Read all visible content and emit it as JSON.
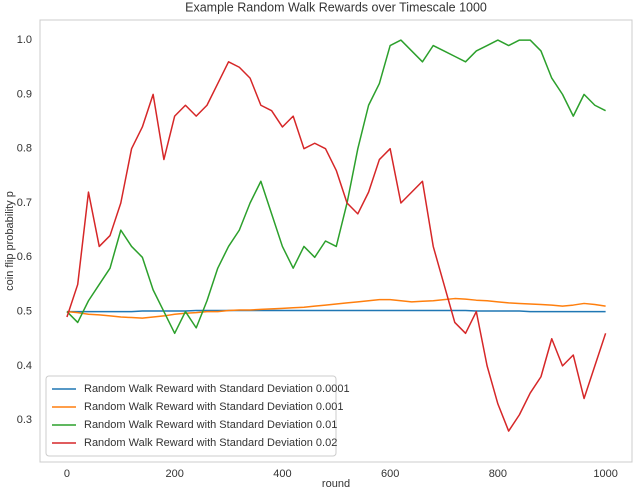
{
  "chart_data": {
    "type": "line",
    "title": "Example Random Walk Rewards over Timescale 1000",
    "x_label": "round",
    "y_label": "coin flip probability p",
    "x": [
      0,
      20,
      40,
      60,
      80,
      100,
      120,
      140,
      160,
      180,
      200,
      220,
      240,
      260,
      280,
      300,
      320,
      340,
      360,
      380,
      400,
      420,
      440,
      460,
      480,
      500,
      520,
      540,
      560,
      580,
      600,
      620,
      640,
      660,
      680,
      700,
      720,
      740,
      760,
      780,
      800,
      820,
      840,
      860,
      880,
      900,
      920,
      940,
      960,
      980,
      1000
    ],
    "series": [
      {
        "name": "Random Walk Reward with Standard Deviation 0.0001",
        "color": "#1f77b4",
        "values": [
          0.5,
          0.5,
          0.5,
          0.5,
          0.5,
          0.5,
          0.5,
          0.501,
          0.501,
          0.501,
          0.501,
          0.501,
          0.502,
          0.502,
          0.502,
          0.502,
          0.502,
          0.502,
          0.502,
          0.502,
          0.502,
          0.502,
          0.502,
          0.502,
          0.502,
          0.502,
          0.502,
          0.502,
          0.502,
          0.502,
          0.502,
          0.502,
          0.502,
          0.502,
          0.502,
          0.502,
          0.502,
          0.502,
          0.501,
          0.501,
          0.501,
          0.501,
          0.501,
          0.5,
          0.5,
          0.5,
          0.5,
          0.5,
          0.5,
          0.5,
          0.5
        ]
      },
      {
        "name": "Random Walk Reward with Standard Deviation 0.001",
        "color": "#ff7f0e",
        "values": [
          0.5,
          0.498,
          0.495,
          0.494,
          0.492,
          0.49,
          0.489,
          0.488,
          0.49,
          0.492,
          0.495,
          0.497,
          0.498,
          0.5,
          0.5,
          0.502,
          0.503,
          0.503,
          0.504,
          0.505,
          0.506,
          0.507,
          0.508,
          0.51,
          0.512,
          0.514,
          0.516,
          0.518,
          0.52,
          0.522,
          0.522,
          0.52,
          0.518,
          0.519,
          0.52,
          0.522,
          0.524,
          0.523,
          0.521,
          0.52,
          0.518,
          0.516,
          0.515,
          0.514,
          0.513,
          0.512,
          0.51,
          0.512,
          0.515,
          0.513,
          0.51
        ]
      },
      {
        "name": "Random Walk Reward with Standard Deviation 0.01",
        "color": "#2ca02c",
        "values": [
          0.5,
          0.48,
          0.52,
          0.55,
          0.58,
          0.65,
          0.62,
          0.6,
          0.54,
          0.5,
          0.46,
          0.5,
          0.47,
          0.52,
          0.58,
          0.62,
          0.65,
          0.7,
          0.74,
          0.68,
          0.62,
          0.58,
          0.62,
          0.6,
          0.63,
          0.62,
          0.7,
          0.8,
          0.88,
          0.92,
          0.99,
          1.0,
          0.98,
          0.96,
          0.99,
          0.98,
          0.97,
          0.96,
          0.98,
          0.99,
          1.0,
          0.99,
          1.0,
          1.0,
          0.98,
          0.93,
          0.9,
          0.86,
          0.9,
          0.88,
          0.87
        ]
      },
      {
        "name": "Random Walk Reward with Standard Deviation 0.02",
        "color": "#d62728",
        "values": [
          0.49,
          0.55,
          0.72,
          0.62,
          0.64,
          0.7,
          0.8,
          0.84,
          0.9,
          0.78,
          0.86,
          0.88,
          0.86,
          0.88,
          0.92,
          0.96,
          0.95,
          0.93,
          0.88,
          0.87,
          0.84,
          0.86,
          0.8,
          0.81,
          0.8,
          0.76,
          0.7,
          0.68,
          0.72,
          0.78,
          0.8,
          0.7,
          0.72,
          0.74,
          0.62,
          0.55,
          0.48,
          0.46,
          0.5,
          0.4,
          0.33,
          0.28,
          0.31,
          0.35,
          0.38,
          0.45,
          0.4,
          0.42,
          0.34,
          0.4,
          0.46
        ]
      }
    ],
    "xlim": [
      -50,
      1049
    ],
    "xticks": [
      0,
      200,
      400,
      600,
      800,
      1000
    ],
    "ylim": [
      0.223,
      1.037
    ],
    "yticks": [
      0.3,
      0.4,
      0.5,
      0.6,
      0.7,
      0.8,
      0.9,
      {
        "value": 1,
        "label": "1.0"
      }
    ],
    "grid": false,
    "legend": "lower left"
  }
}
